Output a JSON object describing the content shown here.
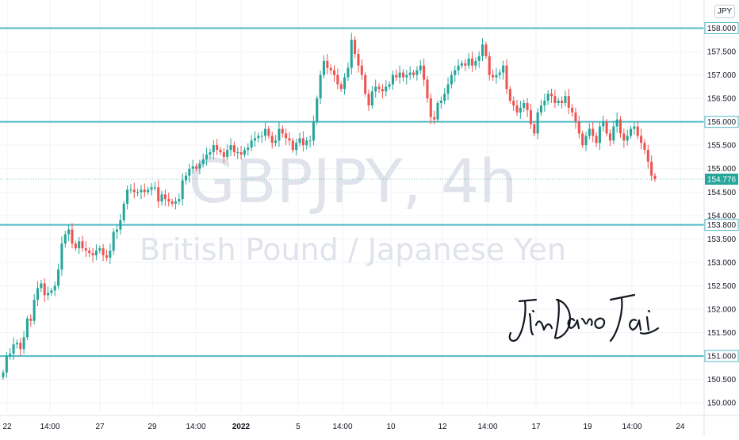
{
  "chart_data": {
    "type": "candlestick",
    "symbol": "GBPJPY, 4h",
    "description": "British Pound / Japanese Yen",
    "currency": "JPY",
    "author_signature": "JinDaoTai",
    "ylim": [
      149.8,
      158.6
    ],
    "y_ticks": [
      "150.000",
      "150.500",
      "151.000",
      "151.500",
      "152.000",
      "152.500",
      "153.000",
      "153.500",
      "154.000",
      "154.500",
      "155.000",
      "155.500",
      "156.000",
      "156.500",
      "157.000",
      "157.500",
      "158.000"
    ],
    "x_ticks": [
      "22",
      "14:00",
      "27",
      "29",
      "14:00",
      "2022",
      "5",
      "14:00",
      "10",
      "12",
      "14:00",
      "17",
      "19",
      "14:00",
      "24"
    ],
    "horizontal_levels": [
      {
        "label": "158.000",
        "value": 158.0
      },
      {
        "label": "156.000",
        "value": 156.0
      },
      {
        "label": "153.800",
        "value": 153.8
      },
      {
        "label": "151.000",
        "value": 151.0
      }
    ],
    "current_price": {
      "label": "154.776",
      "value": 154.776
    },
    "colors": {
      "up": "#26a69a",
      "down": "#ef5350",
      "level": "#4fb9c6",
      "current": "#26a69a",
      "text": "#131722",
      "grid": "#f0f3fa"
    },
    "close_series": [
      150.65,
      151.0,
      151.05,
      151.25,
      151.28,
      151.15,
      151.4,
      151.8,
      151.75,
      152.2,
      152.45,
      152.55,
      152.3,
      152.35,
      152.4,
      152.5,
      152.85,
      153.4,
      153.6,
      153.7,
      153.4,
      153.3,
      153.45,
      153.3,
      153.25,
      153.2,
      153.15,
      153.25,
      153.3,
      153.15,
      153.1,
      153.25,
      153.65,
      153.7,
      153.9,
      154.25,
      154.55,
      154.55,
      154.5,
      154.5,
      154.55,
      154.5,
      154.55,
      154.6,
      154.6,
      154.3,
      154.45,
      154.35,
      154.3,
      154.25,
      154.3,
      154.35,
      154.75,
      154.85,
      155.0,
      155.05,
      155.0,
      155.1,
      155.2,
      155.3,
      155.35,
      155.5,
      155.4,
      155.35,
      155.25,
      155.4,
      155.5,
      155.35,
      155.35,
      155.3,
      155.4,
      155.45,
      155.6,
      155.65,
      155.7,
      155.7,
      155.85,
      155.7,
      155.55,
      155.6,
      155.85,
      155.75,
      155.65,
      155.6,
      155.4,
      155.55,
      155.65,
      155.5,
      155.6,
      155.6,
      156.0,
      156.5,
      157.0,
      157.3,
      157.15,
      157.1,
      157.0,
      156.8,
      156.7,
      156.95,
      157.15,
      157.75,
      157.45,
      157.2,
      157.0,
      156.6,
      156.35,
      156.65,
      156.75,
      156.7,
      156.65,
      156.75,
      156.8,
      157.0,
      156.95,
      157.05,
      156.95,
      157.0,
      157.05,
      157.0,
      157.1,
      157.2,
      156.9,
      156.5,
      156.1,
      156.05,
      156.4,
      156.45,
      156.6,
      156.8,
      157.0,
      157.1,
      157.2,
      157.25,
      157.2,
      157.35,
      157.2,
      157.3,
      157.4,
      157.65,
      157.4,
      157.0,
      156.95,
      157.0,
      157.05,
      157.2,
      156.7,
      156.45,
      156.35,
      156.2,
      156.3,
      156.4,
      156.25,
      155.95,
      155.75,
      156.2,
      156.35,
      156.45,
      156.6,
      156.55,
      156.4,
      156.45,
      156.4,
      156.55,
      156.3,
      156.2,
      156.0,
      155.75,
      155.5,
      155.7,
      155.85,
      155.7,
      155.55,
      155.9,
      156.0,
      155.75,
      155.6,
      155.9,
      156.05,
      155.75,
      155.6,
      155.7,
      155.85,
      155.9,
      155.7,
      155.55,
      155.4,
      155.15,
      154.85,
      154.776
    ]
  }
}
